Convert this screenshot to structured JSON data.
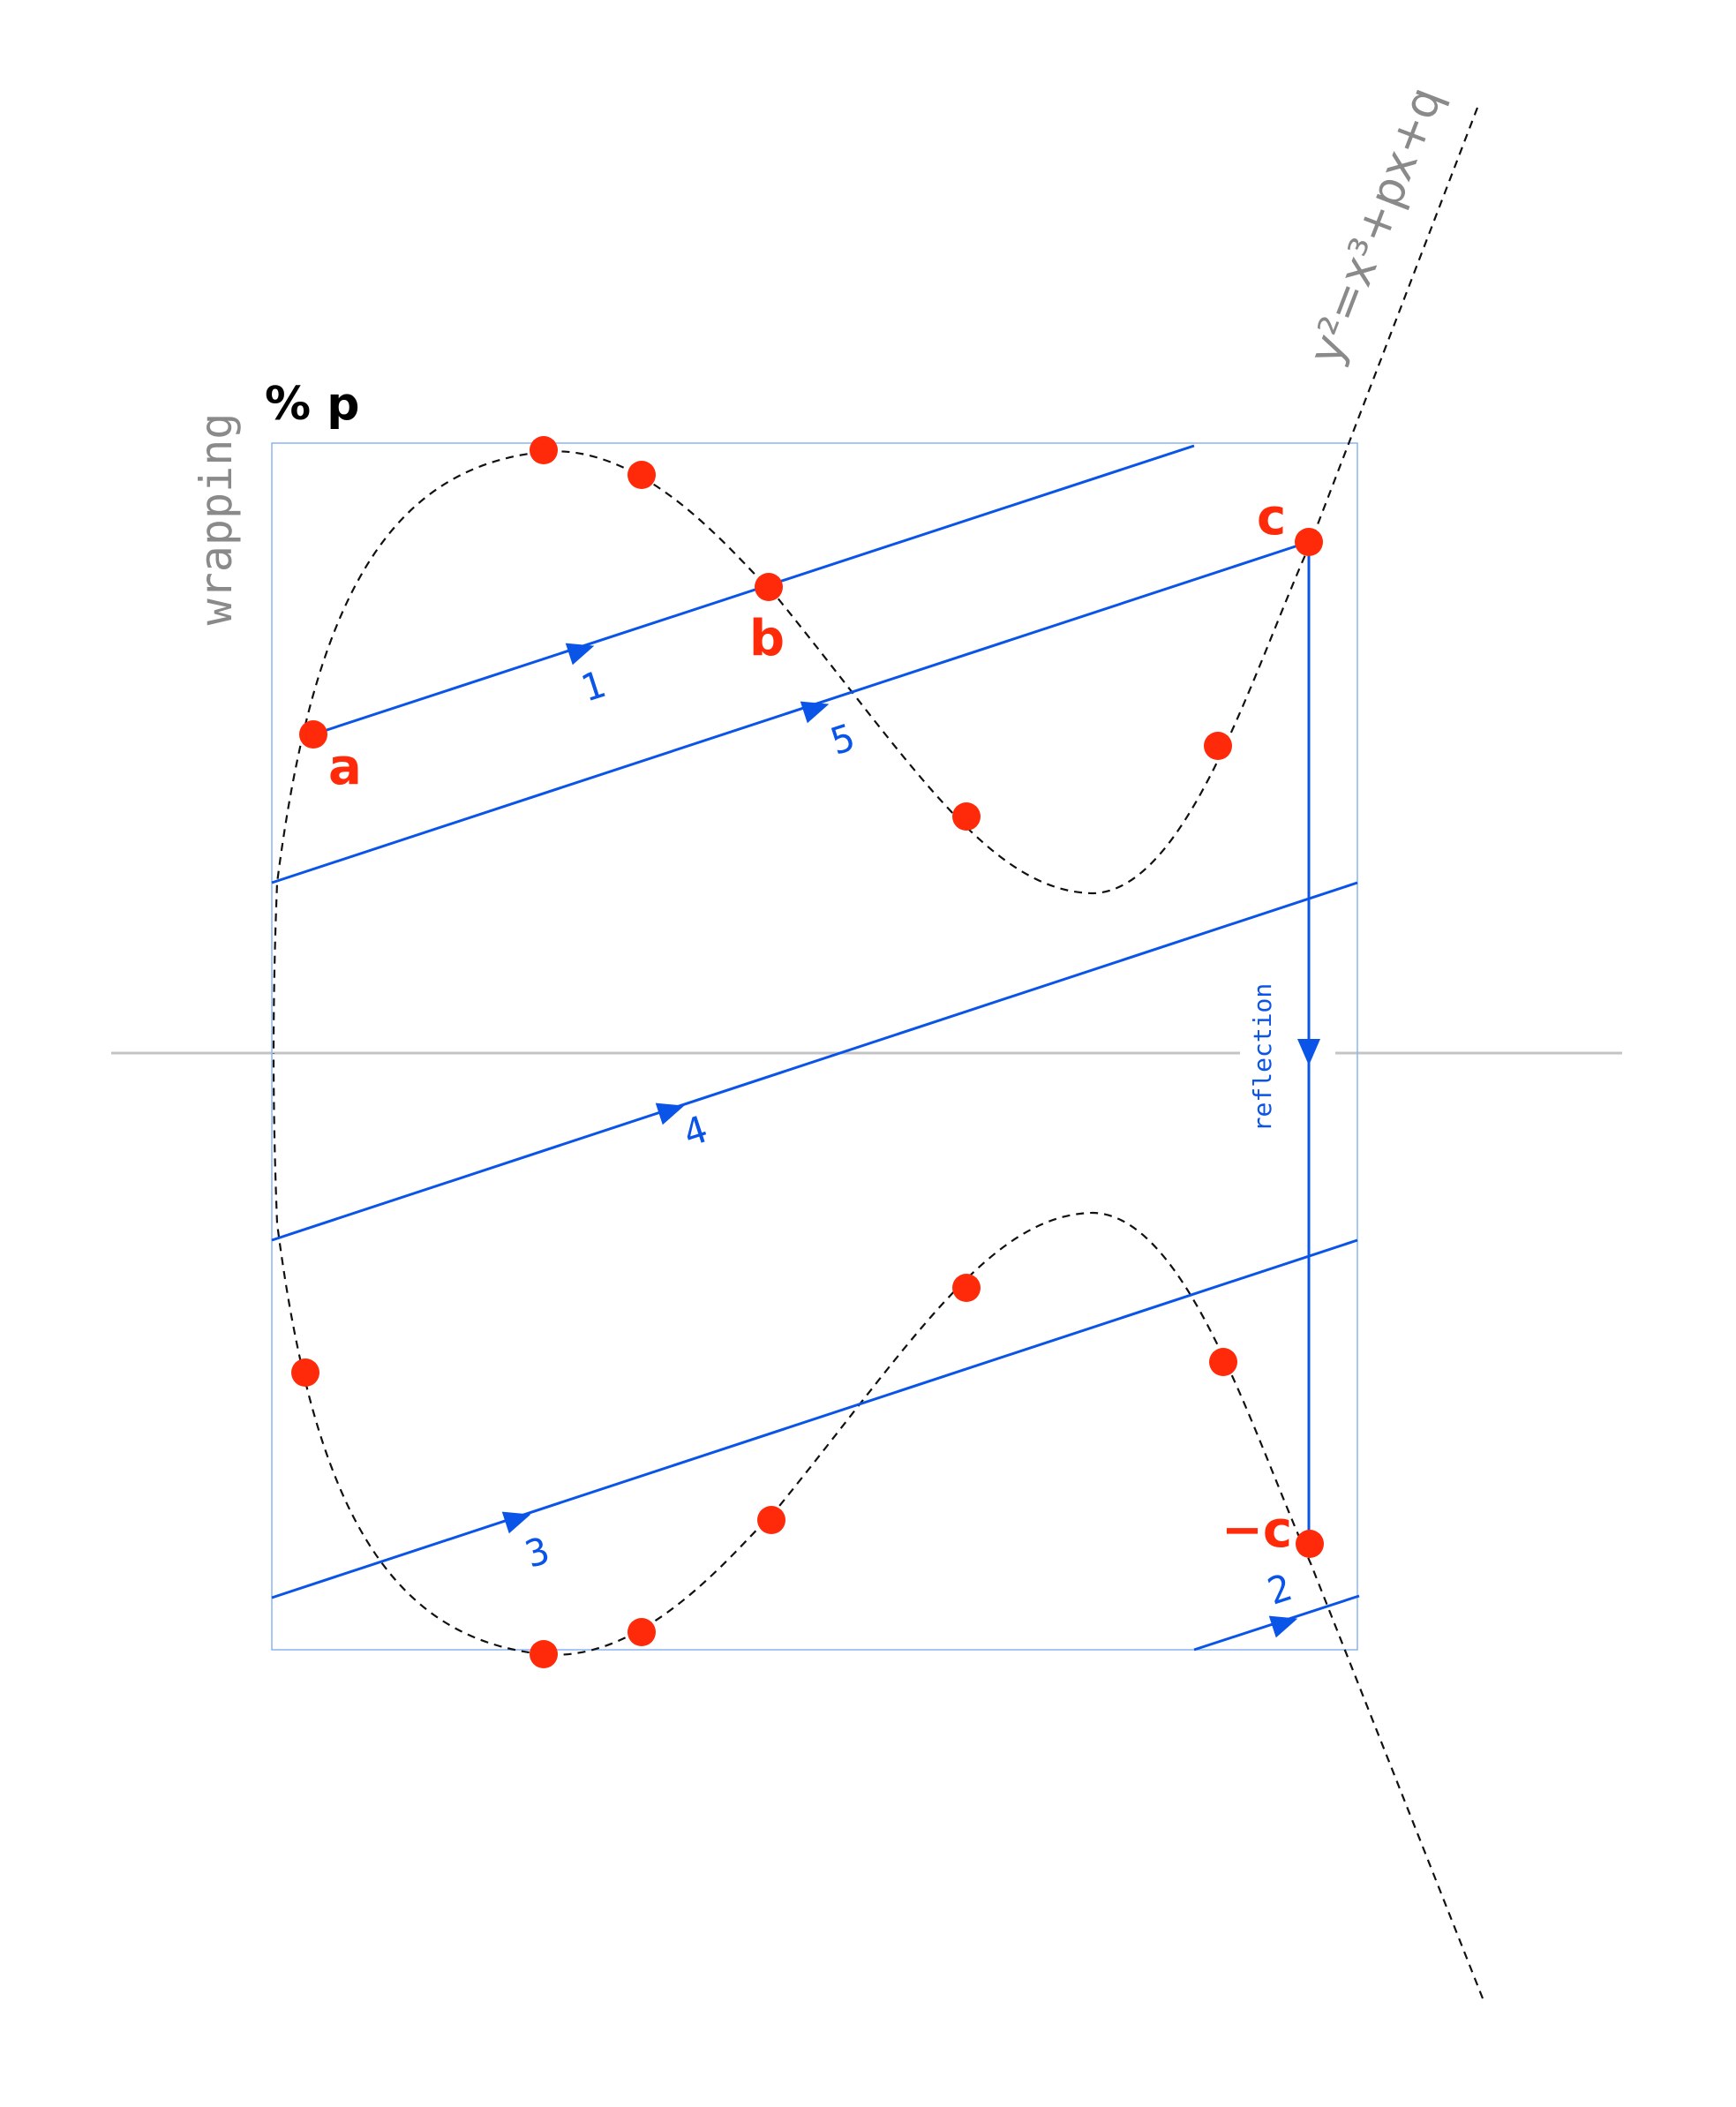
{
  "labels": {
    "wrapping": "wrapping",
    "mod": "% p",
    "equation": "y²=x³+px+q",
    "reflection": "reflection",
    "a": "a",
    "b": "b",
    "c": "c",
    "neg_c": "−c"
  },
  "steps": [
    "1",
    "2",
    "3",
    "4",
    "5"
  ],
  "colors": {
    "line": "#0a55e8",
    "point": "#ff2a0a",
    "box": "#8ab4f0",
    "axis": "#c4c4c4",
    "curve": "#111111",
    "gray_text": "#8a8a8a",
    "black_text": "#000000"
  },
  "icons": {
    "direction": "triangle-arrow-icon",
    "point": "filled-circle-icon"
  }
}
